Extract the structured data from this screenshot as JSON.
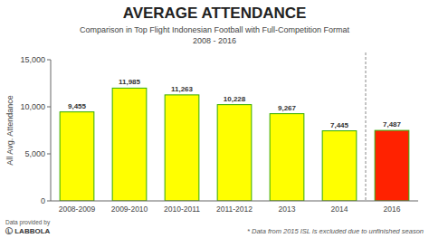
{
  "chart_data": {
    "type": "bar",
    "title": "AVERAGE ATTENDANCE",
    "subtitle": "Comparison in Top Flight Indonesian Football with Full-Competition Format",
    "annotations": [
      "2008 - 2016",
      "* Data from 2015 ISL is excluded due to unfinished season",
      "Data provided by",
      "Ⓛ LABBOLA"
    ],
    "y_label": "All Avg. Attendance",
    "categories": [
      "2008-2009",
      "2009-2010",
      "2010-2011",
      "2011-2012",
      "2013",
      "2014",
      "2016"
    ],
    "values": [
      9455,
      11985,
      11263,
      10228,
      9267,
      7445,
      7487
    ],
    "value_labels": [
      "9,455",
      "11,985",
      "11,263",
      "10,228",
      "9,267",
      "7,445",
      "7,487"
    ],
    "colors": [
      "#ffff00",
      "#ffff00",
      "#ffff00",
      "#ffff00",
      "#ffff00",
      "#ffff00",
      "#ff2200"
    ],
    "ylim": [
      0,
      15000
    ],
    "yticks": [
      0,
      {
        "value": 5000,
        "label": "5,000"
      },
      {
        "value": 10000,
        "label": "10,000"
      },
      {
        "value": 15000,
        "label": "15,000"
      }
    ],
    "grid": false,
    "data_labels": true
  }
}
